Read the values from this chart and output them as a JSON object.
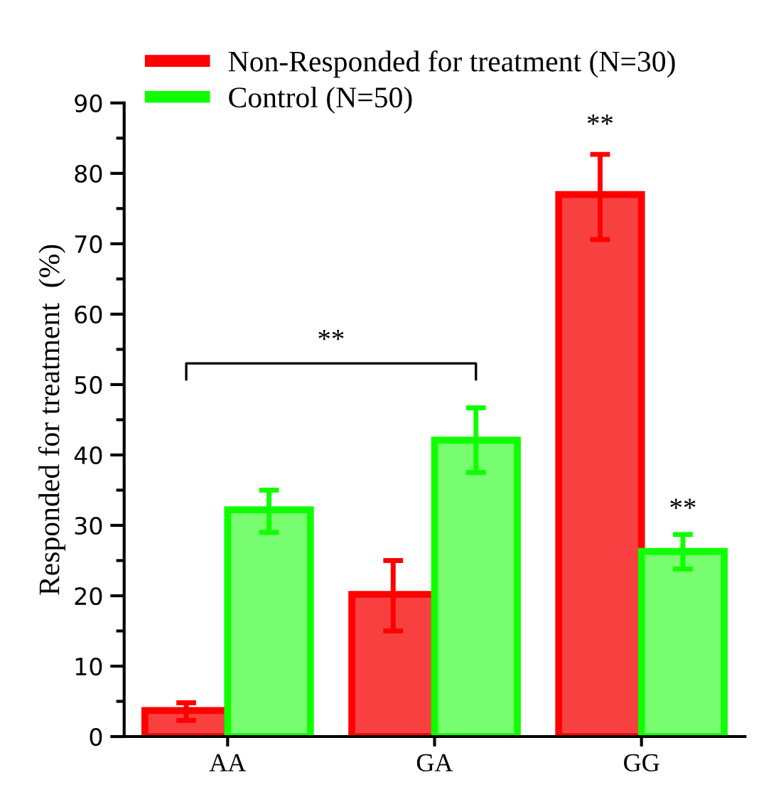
{
  "chart_data": {
    "type": "bar",
    "ylabel": "Responded for treatment  (%)",
    "categories": [
      "AA",
      "GA",
      "GG"
    ],
    "series": [
      {
        "name": "Non-Responded for treatment (N=30)",
        "color": "#f94040",
        "values": [
          3.7,
          20.2,
          77.0
        ],
        "errors": [
          [
            2.3,
            4.8
          ],
          [
            15.0,
            25.0
          ],
          [
            70.6,
            82.7
          ]
        ]
      },
      {
        "name": "Control (N=50)",
        "color": "#78fc70",
        "values": [
          32.2,
          42.1,
          26.3
        ],
        "errors": [
          [
            29.0,
            35.0
          ],
          [
            37.5,
            46.7
          ],
          [
            23.8,
            28.7
          ]
        ]
      }
    ],
    "ylim": [
      0,
      90
    ],
    "yticks": [
      0,
      10,
      20,
      30,
      40,
      50,
      60,
      70,
      80,
      90
    ],
    "legend": "top left",
    "grid": false,
    "annotations": [
      "**",
      "**",
      {
        "text": "**",
        "x": "GG",
        "y": 28.7
      }
    ]
  }
}
